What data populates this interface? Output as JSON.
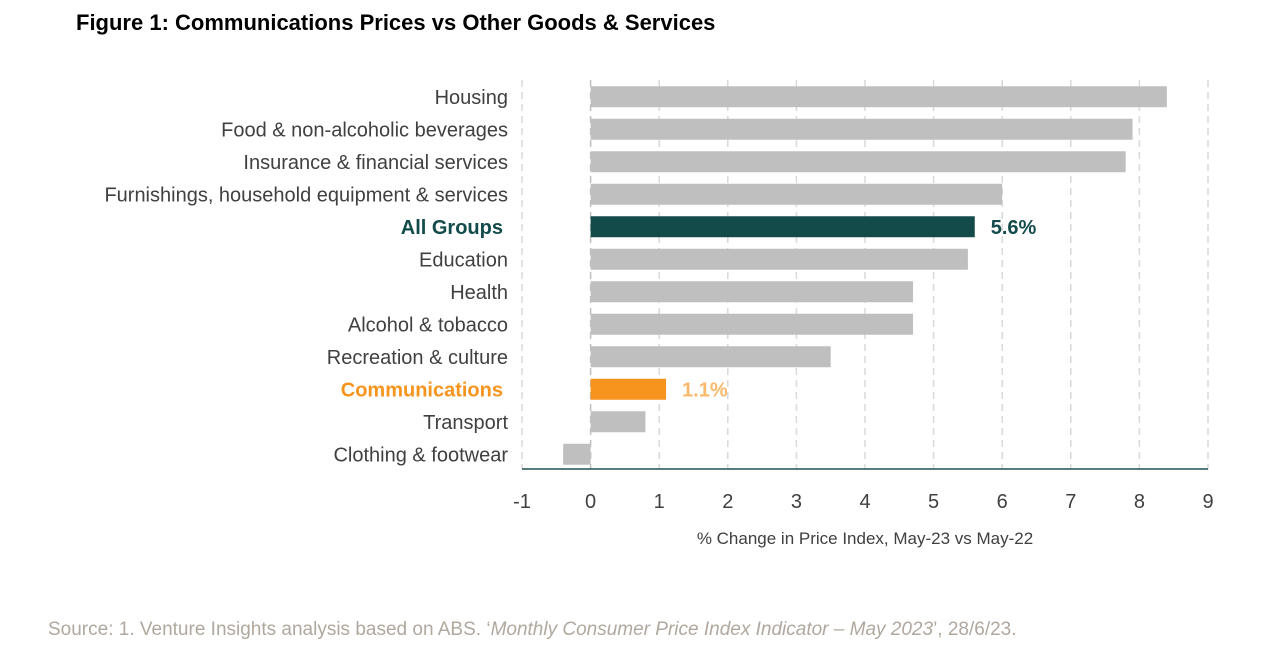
{
  "title": "Figure 1: Communications Prices vs Other Goods & Services",
  "chart_data": {
    "type": "bar",
    "orientation": "horizontal",
    "categories": [
      "Housing",
      "Food & non-alcoholic beverages",
      "Insurance & financial services",
      "Furnishings, household equipment & services",
      "All Groups",
      "Education",
      "Health",
      "Alcohol & tobacco",
      "Recreation & culture",
      "Communications",
      "Transport",
      "Clothing & footwear"
    ],
    "values": [
      8.4,
      7.9,
      7.8,
      6.0,
      5.6,
      5.5,
      4.7,
      4.7,
      3.5,
      1.1,
      0.8,
      -0.4
    ],
    "data_labels": {
      "All Groups": "5.6%",
      "Communications": "1.1%"
    },
    "xlabel": "% Change in Price Index, May-23 vs May-22",
    "xlim": [
      -1,
      9
    ],
    "xticks": [
      "-1",
      "0",
      "1",
      "2",
      "3",
      "4",
      "5",
      "6",
      "7",
      "8",
      "9"
    ],
    "grid": "vertical dashed",
    "colors": {
      "default": "#bfbfbf",
      "All Groups": "#134b4b",
      "Communications": "#f7941d",
      "Communications_label": "#fab96a",
      "category_text": "#404040",
      "axis": "#1f5050",
      "grid": "#d9d9d9"
    }
  },
  "source": {
    "prefix": "Source: 1. Venture Insights analysis based on ABS. ‘",
    "italic": "Monthly Consumer Price Index Indicator – May 2023",
    "suffix": "’, 28/6/23."
  }
}
